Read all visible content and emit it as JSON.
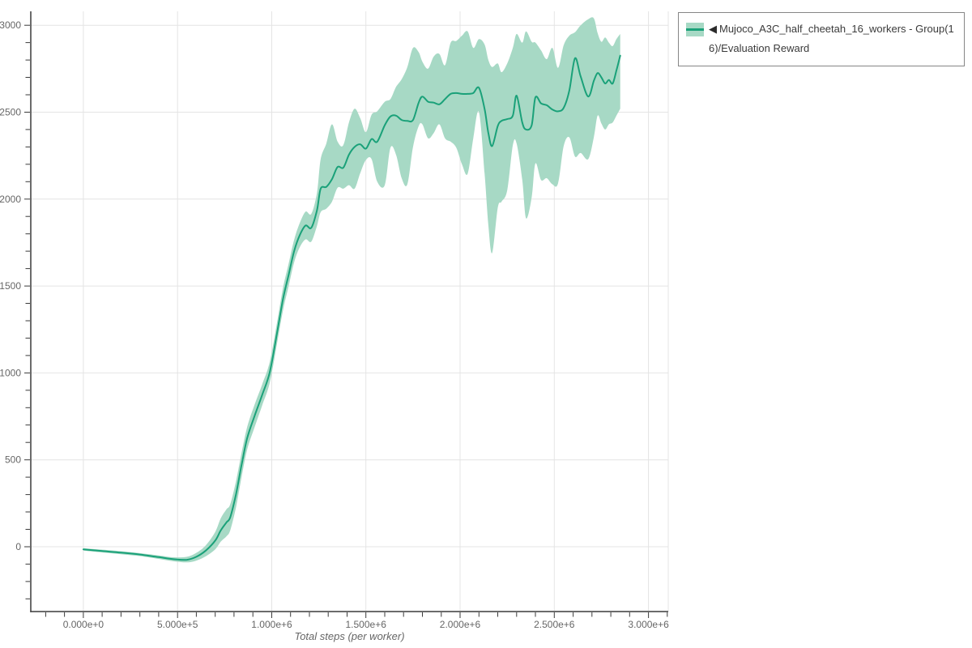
{
  "legend": {
    "collapse_icon": "◀",
    "label": "Mujoco_A3C_half_cheetah_16_workers - Group(16)/Evaluation Reward"
  },
  "chart_data": {
    "type": "line",
    "subtype": "mean-line-with-confidence-band",
    "title": "",
    "xlabel": "Total steps (per worker)",
    "ylabel": "",
    "xlim": [
      -279000,
      3105000
    ],
    "ylim": [
      -373,
      3080
    ],
    "grid": "major-only",
    "legend_position": "outside-top-right",
    "x_major_ticks": [
      {
        "value": 0,
        "label": "0.000e+0"
      },
      {
        "value": 500000,
        "label": "5.000e+5"
      },
      {
        "value": 1000000,
        "label": "1.000e+6"
      },
      {
        "value": 1500000,
        "label": "1.500e+6"
      },
      {
        "value": 2000000,
        "label": "2.000e+6"
      },
      {
        "value": 2500000,
        "label": "2.500e+6"
      },
      {
        "value": 3000000,
        "label": "3.000e+6"
      }
    ],
    "x_minor_step": 100000,
    "y_major_ticks": [
      {
        "value": 0,
        "label": "0"
      },
      {
        "value": 500,
        "label": "500"
      },
      {
        "value": 1000,
        "label": "1000"
      },
      {
        "value": 1500,
        "label": "1500"
      },
      {
        "value": 2000,
        "label": "2000"
      },
      {
        "value": 2500,
        "label": "2500"
      },
      {
        "value": 3000,
        "label": "3000"
      }
    ],
    "y_minor_step": 100,
    "colors": {
      "line": "#1aa179",
      "band": "#a7d9c5",
      "grid": "#e4e4e4",
      "axis": "#3a3a3a",
      "tick_label": "#666666"
    },
    "series": [
      {
        "name": "Mujoco_A3C_half_cheetah_16_workers - Group(16)/Evaluation Reward",
        "line_color": "#1aa179",
        "band_color": "#a7d9c5",
        "points_format": [
          "step",
          "mean",
          "lower",
          "upper"
        ],
        "points": [
          [
            0,
            -15,
            -22,
            -8
          ],
          [
            100000,
            -25,
            -33,
            -17
          ],
          [
            200000,
            -34,
            -43,
            -26
          ],
          [
            300000,
            -45,
            -54,
            -37
          ],
          [
            400000,
            -60,
            -70,
            -50
          ],
          [
            480000,
            -72,
            -84,
            -61
          ],
          [
            550000,
            -75,
            -90,
            -58
          ],
          [
            600000,
            -58,
            -80,
            -35
          ],
          [
            650000,
            -22,
            -55,
            8
          ],
          [
            700000,
            35,
            -15,
            85
          ],
          [
            730000,
            95,
            30,
            165
          ],
          [
            760000,
            140,
            60,
            215
          ],
          [
            780000,
            170,
            95,
            245
          ],
          [
            810000,
            300,
            225,
            375
          ],
          [
            840000,
            470,
            400,
            540
          ],
          [
            870000,
            625,
            560,
            690
          ],
          [
            910000,
            755,
            690,
            820
          ],
          [
            950000,
            875,
            815,
            935
          ],
          [
            990000,
            1005,
            945,
            1065
          ],
          [
            1030000,
            1240,
            1180,
            1300
          ],
          [
            1060000,
            1425,
            1360,
            1490
          ],
          [
            1090000,
            1565,
            1500,
            1630
          ],
          [
            1120000,
            1705,
            1640,
            1770
          ],
          [
            1150000,
            1795,
            1725,
            1865
          ],
          [
            1180000,
            1848,
            1768,
            1928
          ],
          [
            1210000,
            1835,
            1755,
            1915
          ],
          [
            1240000,
            1935,
            1845,
            2035
          ],
          [
            1260000,
            2060,
            1925,
            2230
          ],
          [
            1290000,
            2070,
            1945,
            2320
          ],
          [
            1320000,
            2115,
            1985,
            2430
          ],
          [
            1350000,
            2185,
            2065,
            2330
          ],
          [
            1380000,
            2180,
            2060,
            2310
          ],
          [
            1410000,
            2255,
            2080,
            2440
          ],
          [
            1440000,
            2300,
            2060,
            2520
          ],
          [
            1470000,
            2315,
            2150,
            2465
          ],
          [
            1500000,
            2290,
            2225,
            2385
          ],
          [
            1530000,
            2345,
            2230,
            2485
          ],
          [
            1560000,
            2330,
            2100,
            2505
          ],
          [
            1600000,
            2425,
            2080,
            2560
          ],
          [
            1630000,
            2475,
            2295,
            2575
          ],
          [
            1660000,
            2480,
            2255,
            2645
          ],
          [
            1690000,
            2455,
            2120,
            2690
          ],
          [
            1720000,
            2450,
            2085,
            2760
          ],
          [
            1750000,
            2455,
            2300,
            2870
          ],
          [
            1780000,
            2555,
            2420,
            2845
          ],
          [
            1800000,
            2590,
            2430,
            2790
          ],
          [
            1830000,
            2560,
            2350,
            2750
          ],
          [
            1860000,
            2555,
            2380,
            2820
          ],
          [
            1890000,
            2545,
            2430,
            2835
          ],
          [
            1920000,
            2575,
            2350,
            2770
          ],
          [
            1950000,
            2605,
            2330,
            2900
          ],
          [
            1980000,
            2610,
            2295,
            2910
          ],
          [
            2010000,
            2605,
            2200,
            2940
          ],
          [
            2040000,
            2605,
            2145,
            2965
          ],
          [
            2070000,
            2610,
            2350,
            2870
          ],
          [
            2100000,
            2640,
            2500,
            2920
          ],
          [
            2130000,
            2520,
            2150,
            2890
          ],
          [
            2150000,
            2380,
            1850,
            2800
          ],
          [
            2170000,
            2305,
            1690,
            2760
          ],
          [
            2200000,
            2420,
            1950,
            2780
          ],
          [
            2220000,
            2450,
            1985,
            2730
          ],
          [
            2250000,
            2460,
            2050,
            2780
          ],
          [
            2280000,
            2480,
            2310,
            2870
          ],
          [
            2300000,
            2595,
            2320,
            2950
          ],
          [
            2330000,
            2440,
            2110,
            2900
          ],
          [
            2350000,
            2400,
            1890,
            2965
          ],
          [
            2380000,
            2425,
            2010,
            2905
          ],
          [
            2400000,
            2585,
            2205,
            2900
          ],
          [
            2430000,
            2550,
            2110,
            2855
          ],
          [
            2460000,
            2540,
            2120,
            2805
          ],
          [
            2490000,
            2515,
            2085,
            2870
          ],
          [
            2520000,
            2505,
            2090,
            2755
          ],
          [
            2550000,
            2525,
            2305,
            2885
          ],
          [
            2580000,
            2625,
            2355,
            2940
          ],
          [
            2610000,
            2810,
            2245,
            2960
          ],
          [
            2640000,
            2705,
            2265,
            3000
          ],
          [
            2680000,
            2590,
            2230,
            3035
          ],
          [
            2710000,
            2680,
            2355,
            3040
          ],
          [
            2730000,
            2725,
            2480,
            2955
          ],
          [
            2750000,
            2700,
            2435,
            2905
          ],
          [
            2770000,
            2665,
            2400,
            2930
          ],
          [
            2790000,
            2685,
            2430,
            2900
          ],
          [
            2810000,
            2665,
            2440,
            2880
          ],
          [
            2830000,
            2740,
            2480,
            2920
          ],
          [
            2850000,
            2825,
            2520,
            2950
          ]
        ]
      }
    ]
  }
}
